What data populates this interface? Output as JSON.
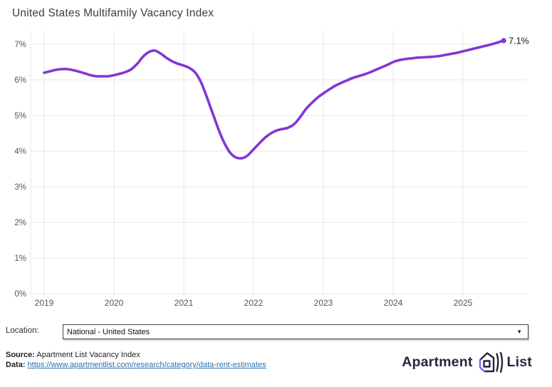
{
  "title": "United States Multifamily Vacancy Index",
  "chart_data": {
    "type": "line",
    "title": "United States Multifamily Vacancy Index",
    "x_monthly_from": "2019-01",
    "x_tick_labels": [
      "2019",
      "2020",
      "2021",
      "2022",
      "2023",
      "2024",
      "2025"
    ],
    "y_tick_labels": [
      "0%",
      "1%",
      "2%",
      "3%",
      "4%",
      "5%",
      "6%",
      "7%"
    ],
    "ylim": [
      0,
      7.4
    ],
    "grid": true,
    "legend": "none",
    "end_label": "7.1%",
    "end_value": 7.1,
    "series": [
      {
        "name": "National - United States",
        "color": "#8237d2",
        "values": [
          6.2,
          6.24,
          6.28,
          6.3,
          6.3,
          6.27,
          6.23,
          6.18,
          6.13,
          6.1,
          6.1,
          6.1,
          6.13,
          6.17,
          6.22,
          6.3,
          6.45,
          6.65,
          6.78,
          6.82,
          6.74,
          6.62,
          6.52,
          6.45,
          6.4,
          6.33,
          6.2,
          5.92,
          5.5,
          5.05,
          4.6,
          4.22,
          3.95,
          3.82,
          3.8,
          3.88,
          4.05,
          4.22,
          4.38,
          4.5,
          4.58,
          4.62,
          4.66,
          4.76,
          4.95,
          5.18,
          5.35,
          5.5,
          5.62,
          5.73,
          5.83,
          5.91,
          5.98,
          6.05,
          6.1,
          6.15,
          6.21,
          6.28,
          6.35,
          6.42,
          6.5,
          6.55,
          6.58,
          6.6,
          6.62,
          6.63,
          6.64,
          6.65,
          6.67,
          6.7,
          6.73,
          6.76,
          6.8,
          6.84,
          6.88,
          6.92,
          6.96,
          7.0,
          7.05,
          7.1
        ]
      }
    ]
  },
  "controls": {
    "location_label": "Location:",
    "location_value": "National - United States",
    "dropdown_caret": "▼"
  },
  "footer": {
    "source_label": "Source:",
    "source_text": "Apartment List Vacancy Index",
    "data_label": "Data:",
    "data_link_text": "https://www.apartmentlist.com/research/category/data-rent-estimates"
  },
  "branding": {
    "name_part1": "Apartment",
    "name_part2": "List",
    "icon": "apartment-list-house-icon",
    "navy": "#29243d",
    "purple": "#8b5cf6"
  },
  "colors": {
    "line": "#8237d2",
    "grid": "#e7e7e7",
    "axis_text": "#555555",
    "title_text": "#3d3d3d",
    "end_label_text": "#1a1a1a",
    "link": "#2970b3",
    "background": "#ffffff"
  }
}
